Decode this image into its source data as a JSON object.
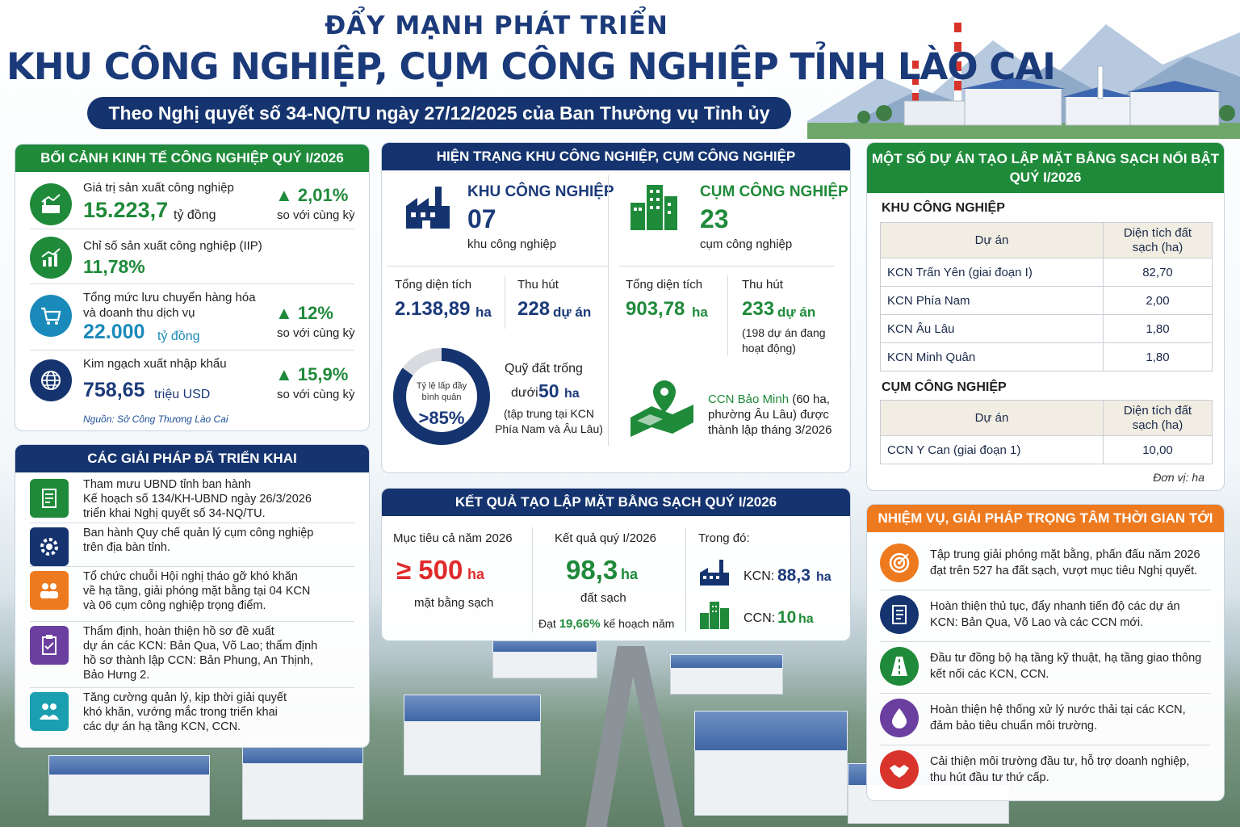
{
  "header": {
    "title_line1": "ĐẨY MẠNH PHÁT TRIỂN",
    "title_line2": "KHU CÔNG NGHIỆP, CỤM CÔNG NGHIỆP TỈNH LÀO CAI",
    "subtitle": "Theo Nghị quyết số 34-NQ/TU ngày 27/12/2025 của Ban Thường vụ Tỉnh ủy"
  },
  "economy": {
    "heading": "BỐI CẢNH KINH TẾ CÔNG NGHIỆP QUÝ I/2026",
    "items": [
      {
        "label": "Giá trị sản xuất công nghiệp",
        "value": "15.223,7",
        "unit": "tỷ đồng",
        "change": "▲ 2,01%",
        "compare": "so với cùng kỳ",
        "icon": "factory-chart-icon"
      },
      {
        "label": "Chỉ số sản xuất công nghiệp (IIP)",
        "value": "11,78%",
        "unit": "",
        "change": "",
        "compare": "",
        "icon": "growth-chart-icon"
      },
      {
        "label": "Tổng mức lưu chuyển hàng hóa\nvà doanh thu dịch vụ",
        "value": "22.000",
        "unit": "tỷ đồng",
        "change": "▲ 12%",
        "compare": "so với cùng kỳ",
        "icon": "shopping-cart-icon"
      },
      {
        "label": "Kim ngạch xuất nhập khẩu",
        "value": "758,65",
        "unit": "triệu USD",
        "change": "▲ 15,9%",
        "compare": "so với cùng kỳ",
        "icon": "globe-icon"
      }
    ],
    "source": "Nguồn: Sở Công Thương Lào Cai"
  },
  "solutions": {
    "heading": "CÁC GIẢI PHÁP ĐÃ TRIỂN KHAI",
    "items": [
      {
        "text": "Tham mưu UBND tỉnh ban hành\nKế hoạch số 134/KH-UBND ngày 26/3/2026\ntriển khai Nghị quyết số 34-NQ/TU.",
        "icon": "document-icon",
        "color": "#1f8a3a"
      },
      {
        "text": "Ban hành Quy chế quản lý cụm công nghiệp\ntrên địa bàn tỉnh.",
        "icon": "gear-icon",
        "color": "#15346f"
      },
      {
        "text": "Tổ chức chuỗi Hội nghị tháo gỡ khó khăn\nvề hạ tầng, giải phóng mặt bằng tại 04 KCN\nvà 06 cụm công nghiệp trọng điểm.",
        "icon": "meeting-icon",
        "color": "#ee7a1f"
      },
      {
        "text": "Thẩm định, hoàn thiện hồ sơ đề xuất\ndự án các KCN: Bản Qua, Võ Lao; thẩm định\nhồ sơ thành lập CCN: Bản Phung, An Thịnh,\nBảo Hưng 2.",
        "icon": "clipboard-icon",
        "color": "#6a3fa0"
      },
      {
        "text": "Tăng cường quản lý, kịp thời giải quyết\nkhó khăn, vướng mắc trong triển khai\ncác dự án hạ tầng KCN, CCN.",
        "icon": "people-icon",
        "color": "#1a9fb0"
      }
    ]
  },
  "status": {
    "heading": "HIỆN TRẠNG KHU CÔNG NGHIỆP, CỤM CÔNG NGHIỆP",
    "kcn": {
      "title": "KHU CÔNG NGHIỆP",
      "count": "07",
      "count_label": "khu công nghiệp",
      "area_label": "Tổng diện tích",
      "area_value": "2.138,89",
      "area_unit": "ha",
      "attract_label": "Thu hút",
      "attract_value": "228",
      "attract_unit": "dự án"
    },
    "ccn": {
      "title": "CỤM CÔNG NGHIỆP",
      "count": "23",
      "count_label": "cụm công nghiệp",
      "area_label": "Tổng diện tích",
      "area_value": "903,78",
      "area_unit": "ha",
      "attract_label": "Thu hút",
      "attract_value": "233",
      "attract_unit": "dự án",
      "attract_note": "(198 dự án đang\nhoạt động)"
    },
    "occupancy": {
      "label": "Tỷ lệ lấp đầy\nbình quân",
      "value": ">85%",
      "fraction": 0.85
    },
    "land": {
      "label": "Quỹ đất trống",
      "prefix": "dưới",
      "value": "50",
      "unit": "ha",
      "note": "(tập trung tại KCN\nPhía Nam và Âu Lâu)"
    },
    "new_ccn": {
      "name": "CCN Bảo Minh",
      "text": " (60 ha,\nphường Âu Lâu) được\nthành lập tháng 3/2026"
    }
  },
  "results": {
    "heading": "KẾT QUẢ TẠO LẬP MẶT BẰNG SẠCH QUÝ I/2026",
    "target": {
      "label": "Mục tiêu cả năm 2026",
      "value": "≥ 500",
      "unit": "ha",
      "note": "mặt bằng sạch"
    },
    "result": {
      "label": "Kết quả quý I/2026",
      "value": "98,3",
      "unit": "ha",
      "note": "đất sạch",
      "plan_prefix": "Đạt ",
      "plan_value": "19,66%",
      "plan_suffix": " kế hoạch năm"
    },
    "breakdown": {
      "label": "Trong đó:",
      "kcn_label": "KCN:",
      "kcn_value": "88,3",
      "kcn_unit": "ha",
      "ccn_label": "CCN:",
      "ccn_value": "10",
      "ccn_unit": "ha"
    }
  },
  "projects": {
    "heading_line1": "MỘT SỐ DỰ ÁN TẠO LẬP MẶT BẰNG SẠCH NỔI BẬT",
    "heading_line2": "QUÝ I/2026",
    "kcn_title": "KHU CÔNG NGHIỆP",
    "ccn_title": "CỤM CÔNG NGHIỆP",
    "col_project": "Dự án",
    "col_area": "Diện tích đất\nsạch (ha)",
    "kcn_rows": [
      {
        "name": "KCN Trấn Yên (giai đoạn I)",
        "area": "82,70"
      },
      {
        "name": "KCN Phía Nam",
        "area": "2,00"
      },
      {
        "name": "KCN Âu Lâu",
        "area": "1,80"
      },
      {
        "name": "KCN Minh Quân",
        "area": "1,80"
      }
    ],
    "ccn_rows": [
      {
        "name": "CCN Y Can (giai đoạn 1)",
        "area": "10,00"
      }
    ],
    "unit_note": "Đơn vị: ha"
  },
  "tasks": {
    "heading": "NHIỆM VỤ, GIẢI PHÁP TRỌNG TÂM THỜI GIAN TỚI",
    "items": [
      {
        "text": "Tập trung giải phóng mặt bằng, phấn đấu năm 2026\nđạt trên 527 ha đất sạch, vượt mục tiêu Nghị quyết.",
        "icon": "target-icon",
        "color": "#ee7a1f"
      },
      {
        "text": "Hoàn thiện thủ tục, đẩy nhanh tiến độ các dự án\nKCN: Bản Qua, Võ Lao và các CCN mới.",
        "icon": "checklist-icon",
        "color": "#15346f"
      },
      {
        "text": "Đầu tư đồng bộ hạ tầng kỹ thuật, hạ tầng giao thông\nkết nối các KCN, CCN.",
        "icon": "road-icon",
        "color": "#1f8a3a"
      },
      {
        "text": "Hoàn thiện hệ thống xử lý nước thải tại các KCN,\nđảm bảo tiêu chuẩn môi trường.",
        "icon": "water-drop-icon",
        "color": "#6a3fa0"
      },
      {
        "text": "Cải thiện môi trường đầu tư, hỗ trợ doanh nghiệp,\nthu hút đầu tư thứ cấp.",
        "icon": "handshake-icon",
        "color": "#d9342b"
      }
    ]
  }
}
